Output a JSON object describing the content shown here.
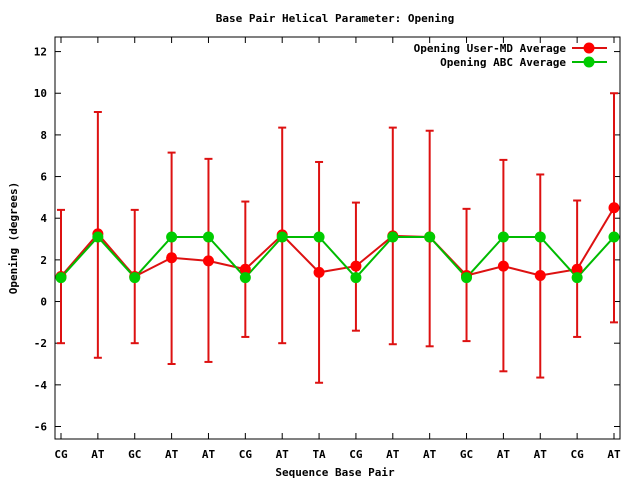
{
  "chart_data": {
    "type": "line",
    "title": "Base Pair Helical Parameter: Opening",
    "xlabel": "Sequence Base Pair",
    "ylabel": "Opening (degrees)",
    "categories": [
      "CG",
      "AT",
      "GC",
      "AT",
      "AT",
      "CG",
      "AT",
      "TA",
      "CG",
      "AT",
      "AT",
      "GC",
      "AT",
      "AT",
      "CG",
      "AT"
    ],
    "ylim": [
      -6.6,
      12.7
    ],
    "yticks": [
      -6,
      -4,
      -2,
      0,
      2,
      4,
      6,
      8,
      10,
      12
    ],
    "grid": false,
    "legend_position": "top-right",
    "series": [
      {
        "name": "Opening User-MD Average",
        "color": "#ff0000",
        "line_color": "#dd1111",
        "values": [
          1.2,
          3.25,
          1.2,
          2.1,
          1.95,
          1.55,
          3.2,
          1.4,
          1.7,
          3.15,
          3.1,
          1.25,
          1.7,
          1.25,
          1.55,
          4.5
        ],
        "error_low": [
          -2.0,
          -2.7,
          -2.0,
          -3.0,
          -2.9,
          -1.7,
          -2.0,
          -3.9,
          -1.4,
          -2.05,
          -2.15,
          -1.9,
          -3.35,
          -3.65,
          -1.7,
          -1.0
        ],
        "error_high": [
          4.4,
          9.1,
          4.4,
          7.15,
          6.85,
          4.8,
          8.35,
          6.7,
          4.75,
          8.35,
          8.2,
          4.45,
          6.8,
          6.1,
          4.85,
          10.0
        ]
      },
      {
        "name": "Opening ABC Average",
        "color": "#00cc00",
        "line_color": "#00bb00",
        "values": [
          1.15,
          3.1,
          1.15,
          3.1,
          3.1,
          1.15,
          3.1,
          3.1,
          1.15,
          3.1,
          3.1,
          1.15,
          3.1,
          3.1,
          1.15,
          3.1
        ]
      }
    ]
  }
}
